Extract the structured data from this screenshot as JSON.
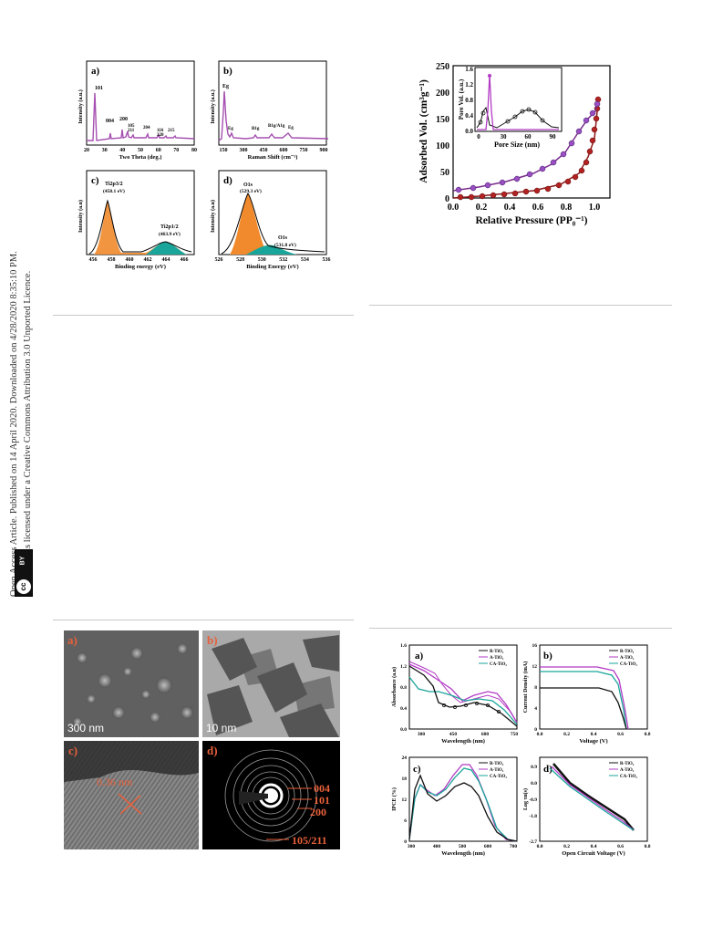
{
  "sidebar": {
    "line1": "Open Access Article. Published on 14 April 2020. Downloaded on 4/28/2020 8:35:10 PM.",
    "line2": "This article is licensed under a Creative Commons Attribution 3.0 Unported Licence.",
    "cc_text": "cc",
    "by_text": "BY"
  },
  "fig_xrd": {
    "a": {
      "label": "a)",
      "xlabel": "Two Theta (deg.)",
      "ylabel": "Intensity (a.u.)",
      "xticks": [
        "20",
        "30",
        "40",
        "50",
        "60",
        "70",
        "80"
      ],
      "peaks": [
        "101",
        "004",
        "200",
        "105",
        "211",
        "204",
        "116",
        "220",
        "215"
      ],
      "color": "#a54fb0"
    },
    "b": {
      "label": "b)",
      "xlabel": "Raman Shift (cm⁻¹)",
      "ylabel": "Intensity (a.u.)",
      "xticks": [
        "150",
        "300",
        "450",
        "600",
        "750",
        "900"
      ],
      "peaks": [
        "Eg",
        "Eg",
        "B1g",
        "B1g/A1g",
        "Eg"
      ],
      "color": "#a54fb0"
    },
    "c": {
      "label": "c)",
      "xlabel": "Binding energy (eV)",
      "ylabel": "Intensity (a.u)",
      "xticks": [
        "456",
        "458",
        "460",
        "462",
        "464",
        "466"
      ],
      "peak1": "Ti2p3/2",
      "peak1_val": "(458.1 eV)",
      "peak2": "Ti2p1/2",
      "peak2_val": "(463.9 eV)"
    },
    "d": {
      "label": "d)",
      "xlabel": "Binding Energy (eV)",
      "ylabel": "Intensity (a.u)",
      "xticks": [
        "526",
        "528",
        "530",
        "532",
        "534",
        "536"
      ],
      "peak1": "O1s",
      "peak1_val": "(529.3 eV)",
      "peak2": "O1s",
      "peak2_val": "(531.8 eV)"
    }
  },
  "fig_bet": {
    "xlabel": "Relative Pressure (PP₀⁻¹)",
    "ylabel": "Adsorbed Vol. (cm³g⁻¹)",
    "xticks": [
      "0.0",
      "0.2",
      "0.4",
      "0.6",
      "0.8",
      "1.0"
    ],
    "yticks": [
      "0",
      "50",
      "100",
      "150",
      "200",
      "250"
    ],
    "inset_xlabel": "Pore Size (nm)",
    "inset_ylabel": "Pore Vol. (a.u.)",
    "inset_xticks": [
      "0",
      "30",
      "60",
      "90"
    ],
    "inset_yticks": [
      "0.0",
      "0.4",
      "0.8",
      "1.2",
      "1.6"
    ]
  },
  "fig_tem": {
    "a_label": "a)",
    "b_label": "b)",
    "c_label": "c)",
    "d_label": "d)",
    "a_scale": "300 nm",
    "b_scale": "10 nm",
    "c_spacing": "0.36 nm",
    "rings": [
      "004",
      "101",
      "200",
      "105/211"
    ]
  },
  "fig_dssc": {
    "legend": [
      "R-TiO₂",
      "A-TiO₂",
      "CA-TiO₂"
    ],
    "colors": {
      "R": "#111111",
      "A": "#b23bc4",
      "CA": "#1aa59a"
    },
    "a": {
      "label": "a)",
      "xlabel": "Wavelength (nm)",
      "ylabel": "Absorbance (a.u)",
      "xticks": [
        "300",
        "450",
        "600",
        "750"
      ],
      "yticks": [
        "0.0",
        "0.4",
        "0.8",
        "1.2",
        "1.6"
      ]
    },
    "b": {
      "label": "b)",
      "xlabel": "Voltage (V)",
      "ylabel": "Current Density (mA)",
      "xticks": [
        "0.0",
        "0.2",
        "0.4",
        "0.6",
        "0.8"
      ],
      "yticks": [
        "0",
        "4",
        "8",
        "12",
        "16"
      ]
    },
    "c": {
      "label": "c)",
      "xlabel": "Wavelength (nm)",
      "ylabel": "IPCE (%)",
      "xticks": [
        "300",
        "400",
        "500",
        "600",
        "700"
      ],
      "yticks": [
        "0",
        "6",
        "12",
        "18",
        "24"
      ]
    },
    "d": {
      "label": "d)",
      "xlabel": "Open Circuit Voltage (V)",
      "ylabel": "Log τn(s)",
      "xticks": [
        "0.0",
        "0.2",
        "0.4",
        "0.6",
        "0.8"
      ],
      "yticks": [
        "0.9",
        "0.0",
        "-0.9",
        "-1.8",
        "-2.7"
      ]
    }
  }
}
